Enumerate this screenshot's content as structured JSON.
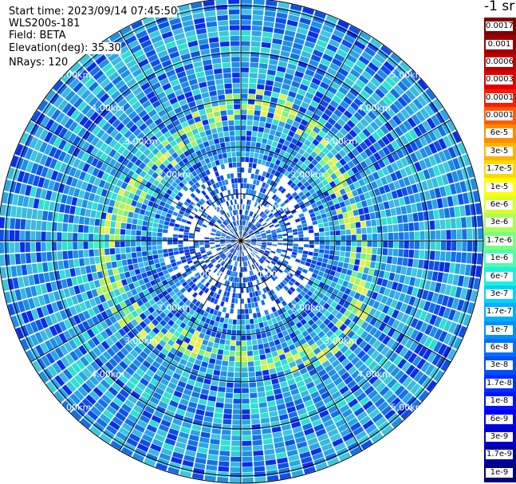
{
  "info": {
    "start_time": "Start time: 2023/09/14 07:45:50",
    "instrument": "WLS200s-181",
    "field": "Field: BETA",
    "elevation": "Elevation(deg): 35.30",
    "nrays": "NRays: 120"
  },
  "colorbar": {
    "unit_title": "-1 sr",
    "labels": [
      "0.0017",
      "0.001",
      "0.0006",
      "0.0003",
      "0.00017",
      "0.0001",
      "6e-5",
      "3e-5",
      "1.7e-5",
      "1e-5",
      "6e-6",
      "3e-6",
      "1.7e-6",
      "1e-6",
      "6e-7",
      "3e-7",
      "1.7e-7",
      "1e-7",
      "6e-8",
      "3e-8",
      "1.7e-8",
      "1e-8",
      "6e-9",
      "3e-9",
      "1.7e-9",
      "1e-9"
    ],
    "colors": [
      "#7f0000",
      "#9a0000",
      "#c00000",
      "#e00000",
      "#ff1a00",
      "#ff5a00",
      "#ff8c00",
      "#ffb400",
      "#ffd800",
      "#ffff00",
      "#d8ff2a",
      "#a8ff56",
      "#78ff82",
      "#48ffb0",
      "#1ef0dc",
      "#00d4ff",
      "#00b0ff",
      "#0090ff",
      "#0070ff",
      "#0050ff",
      "#0030ff",
      "#0014ff",
      "#0000ee",
      "#0000c8",
      "#0000a0",
      "#000080"
    ]
  },
  "rings": {
    "labels": [
      "1.00km",
      "2.00km",
      "3.00km",
      "4.00km",
      "5.00km"
    ]
  }
}
